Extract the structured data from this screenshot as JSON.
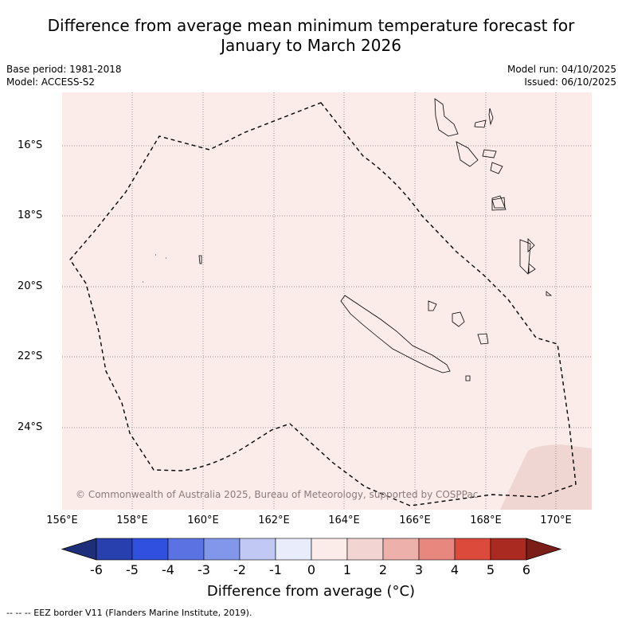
{
  "title": {
    "line1": "Difference from average mean minimum temperature forecast for",
    "line2": "January to March 2026"
  },
  "meta": {
    "base_period": "Base period: 1981-2018",
    "model": "Model: ACCESS-S2",
    "model_run": "Model run: 04/10/2025",
    "issued": "Issued: 06/10/2025"
  },
  "map": {
    "background": "#fbebe9",
    "warmer_region": "#f0d6d3",
    "lat_ticks": [
      "16°S",
      "18°S",
      "20°S",
      "22°S",
      "24°S"
    ],
    "lon_ticks": [
      "156°E",
      "158°E",
      "160°E",
      "162°E",
      "164°E",
      "166°E",
      "168°E",
      "170°E"
    ],
    "copyright": "© Commonwealth of Australia 2025, Bureau of Meteorology, supported by COSPPac"
  },
  "colorbar": {
    "ticks": [
      "-6",
      "-5",
      "-4",
      "-3",
      "-2",
      "-1",
      "0",
      "1",
      "2",
      "3",
      "4",
      "5",
      "6"
    ],
    "colors": [
      "#283fae",
      "#3050e0",
      "#5a72e2",
      "#8397ea",
      "#c2c8f4",
      "#e8ecfb",
      "#fbecea",
      "#f2d5d2",
      "#eeb0aa",
      "#e8877e",
      "#dc4a3c",
      "#aa2a22"
    ],
    "low_extend": "#1d2e7a",
    "high_extend": "#7a1e17",
    "label": "Difference from average (°C)"
  },
  "footer": "--  --  -- EEZ border V11 (Flanders Marine Institute, 2019)."
}
